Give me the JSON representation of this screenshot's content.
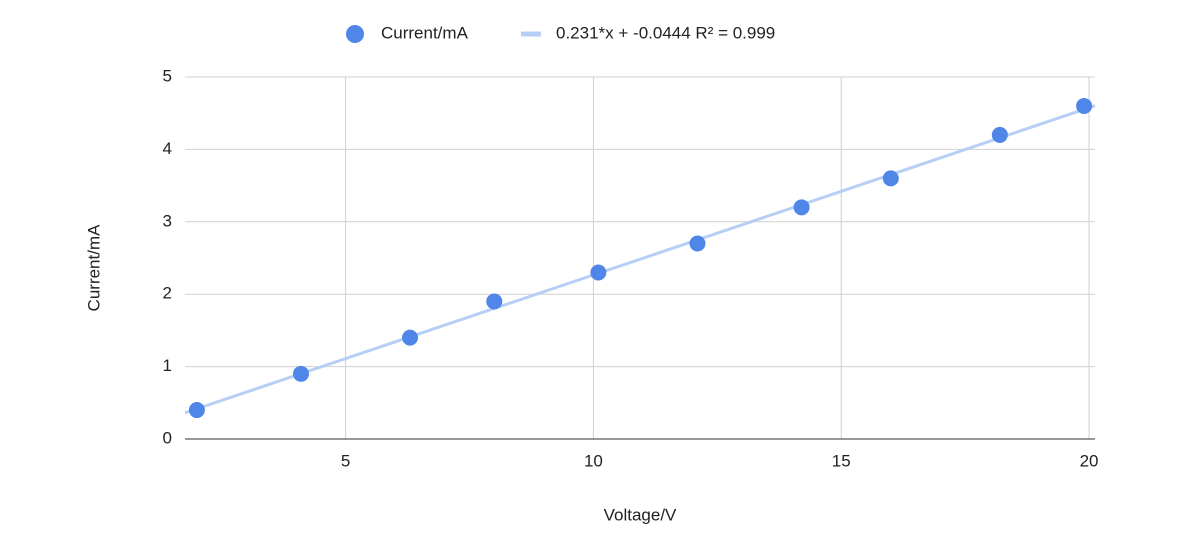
{
  "chart_data": {
    "type": "scatter",
    "x_label": "Voltage/V",
    "y_label": "Current/mA",
    "series": [
      {
        "name": "Current/mA",
        "color": "#4f86e8",
        "x": [
          2.0,
          4.1,
          6.3,
          8.0,
          10.1,
          12.1,
          14.2,
          16.0,
          18.2,
          19.9
        ],
        "values": [
          0.4,
          0.9,
          1.4,
          1.9,
          2.3,
          2.7,
          3.2,
          3.6,
          4.2,
          4.6
        ]
      }
    ],
    "trendline": {
      "name": "0.231*x + -0.0444 R² = 0.999",
      "color": "#b7cff5",
      "slope": 0.231,
      "intercept": -0.0444
    },
    "xlim": [
      1.76,
      20.12
    ],
    "xticks": [
      5,
      10,
      15,
      20
    ],
    "ylim": [
      0,
      5
    ],
    "yticks": [
      0,
      1,
      2,
      3,
      4,
      5
    ],
    "grid": true,
    "legend": "top"
  }
}
